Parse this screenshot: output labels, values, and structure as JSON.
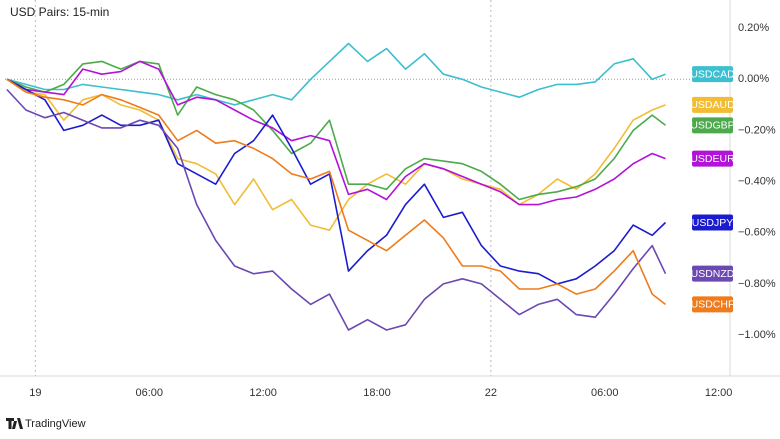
{
  "chart_data": {
    "type": "line",
    "title": "USD Pairs: 15-min",
    "source": "TradingView",
    "x": [
      -1.5,
      -0.5,
      0.5,
      1.5,
      2.5,
      3.5,
      4.5,
      5.5,
      6.5,
      7.5,
      8.5,
      9.5,
      10.5,
      11.5,
      12.5,
      13.5,
      14.5,
      15.5,
      16.5,
      17.5,
      18.5,
      19.5,
      20.5,
      21.5,
      22.5,
      23.5,
      24.5,
      25.5,
      26.5,
      27.5,
      28.5,
      29.5,
      30.5,
      31.5,
      32.5,
      33.2
    ],
    "xlim": [
      -1.6,
      36.6
    ],
    "xticks": [
      {
        "value": 0,
        "label": "19"
      },
      {
        "value": 6,
        "label": "06:00"
      },
      {
        "value": 12,
        "label": "12:00"
      },
      {
        "value": 18,
        "label": "18:00"
      },
      {
        "value": 24,
        "label": "22"
      },
      {
        "value": 30,
        "label": "06:00"
      },
      {
        "value": 36,
        "label": "12:00"
      }
    ],
    "ylim": [
      -1.16,
      0.31
    ],
    "yticks": [
      {
        "value": 0.2,
        "label": "0.20%"
      },
      {
        "value": 0,
        "label": "0.00%"
      },
      {
        "value": -0.2,
        "label": "−0.20%"
      },
      {
        "value": -0.4,
        "label": "−0.40%"
      },
      {
        "value": -0.6,
        "label": "−0.60%"
      },
      {
        "value": -0.8,
        "label": "−0.80%"
      },
      {
        "value": -1,
        "label": "−1.00%"
      }
    ],
    "series": [
      {
        "name": "USDCAD",
        "color": "#3cbfcf",
        "values": [
          0,
          -0.02,
          -0.04,
          -0.04,
          -0.02,
          -0.03,
          -0.04,
          -0.05,
          -0.06,
          -0.08,
          -0.06,
          -0.08,
          -0.1,
          -0.08,
          -0.06,
          -0.08,
          0,
          0.07,
          0.14,
          0.07,
          0.12,
          0.04,
          0.1,
          0.02,
          0,
          -0.03,
          -0.05,
          -0.07,
          -0.04,
          -0.02,
          -0.02,
          -0.01,
          0.06,
          0.08,
          0,
          0.02
        ]
      },
      {
        "name": "USDAUD",
        "color": "#f2bd35",
        "values": [
          0,
          -0.05,
          -0.06,
          -0.16,
          -0.08,
          -0.06,
          -0.1,
          -0.12,
          -0.16,
          -0.31,
          -0.33,
          -0.37,
          -0.49,
          -0.39,
          -0.51,
          -0.47,
          -0.57,
          -0.59,
          -0.47,
          -0.41,
          -0.37,
          -0.41,
          -0.33,
          -0.35,
          -0.39,
          -0.41,
          -0.43,
          -0.49,
          -0.45,
          -0.39,
          -0.43,
          -0.37,
          -0.27,
          -0.16,
          -0.12,
          -0.1
        ]
      },
      {
        "name": "USDGBP",
        "color": "#4caa4c",
        "values": [
          0,
          -0.03,
          -0.05,
          -0.02,
          0.06,
          0.07,
          0.04,
          0.07,
          0.06,
          -0.14,
          -0.03,
          -0.06,
          -0.08,
          -0.12,
          -0.2,
          -0.29,
          -0.25,
          -0.16,
          -0.41,
          -0.41,
          -0.43,
          -0.35,
          -0.31,
          -0.32,
          -0.33,
          -0.36,
          -0.41,
          -0.47,
          -0.45,
          -0.44,
          -0.42,
          -0.39,
          -0.31,
          -0.2,
          -0.14,
          -0.18
        ]
      },
      {
        "name": "USDEUR",
        "color": "#b312d9",
        "values": [
          0,
          -0.04,
          -0.05,
          -0.06,
          0.04,
          0.02,
          0.03,
          0.07,
          0.04,
          -0.1,
          -0.07,
          -0.08,
          -0.12,
          -0.16,
          -0.19,
          -0.24,
          -0.22,
          -0.24,
          -0.45,
          -0.43,
          -0.47,
          -0.38,
          -0.33,
          -0.35,
          -0.38,
          -0.41,
          -0.44,
          -0.49,
          -0.49,
          -0.47,
          -0.46,
          -0.43,
          -0.39,
          -0.33,
          -0.29,
          -0.31
        ]
      },
      {
        "name": "USDJPY",
        "color": "#1c1ccf",
        "values": [
          0,
          -0.04,
          -0.08,
          -0.2,
          -0.18,
          -0.14,
          -0.18,
          -0.18,
          -0.16,
          -0.33,
          -0.37,
          -0.41,
          -0.29,
          -0.24,
          -0.14,
          -0.27,
          -0.41,
          -0.37,
          -0.75,
          -0.67,
          -0.61,
          -0.49,
          -0.41,
          -0.54,
          -0.52,
          -0.65,
          -0.73,
          -0.75,
          -0.76,
          -0.8,
          -0.78,
          -0.73,
          -0.67,
          -0.57,
          -0.61,
          -0.56
        ]
      },
      {
        "name": "USDNZD",
        "color": "#6b48b2",
        "values": [
          -0.04,
          -0.12,
          -0.15,
          -0.13,
          -0.16,
          -0.19,
          -0.19,
          -0.16,
          -0.18,
          -0.27,
          -0.49,
          -0.63,
          -0.73,
          -0.76,
          -0.75,
          -0.82,
          -0.88,
          -0.84,
          -0.98,
          -0.94,
          -0.98,
          -0.96,
          -0.86,
          -0.8,
          -0.78,
          -0.8,
          -0.86,
          -0.92,
          -0.88,
          -0.86,
          -0.92,
          -0.93,
          -0.84,
          -0.74,
          -0.65,
          -0.76
        ]
      },
      {
        "name": "USDCHF",
        "color": "#ef7b1c",
        "values": [
          0,
          -0.05,
          -0.07,
          -0.08,
          -0.1,
          -0.06,
          -0.08,
          -0.11,
          -0.14,
          -0.24,
          -0.2,
          -0.25,
          -0.24,
          -0.27,
          -0.31,
          -0.37,
          -0.39,
          -0.36,
          -0.59,
          -0.63,
          -0.67,
          -0.61,
          -0.55,
          -0.62,
          -0.73,
          -0.73,
          -0.75,
          -0.82,
          -0.82,
          -0.8,
          -0.84,
          -0.82,
          -0.75,
          -0.67,
          -0.84,
          -0.88
        ]
      }
    ]
  }
}
